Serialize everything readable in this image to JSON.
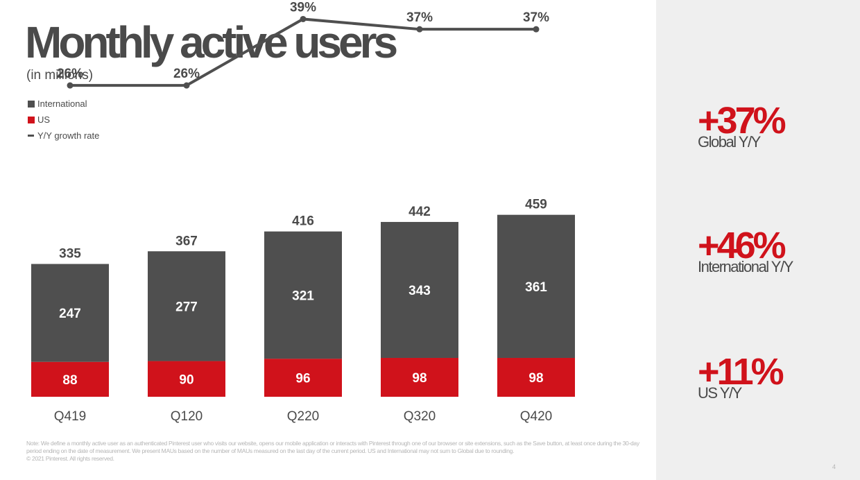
{
  "slide": {
    "title": "Monthly active users",
    "subtitle": "(in millions)",
    "page_number": "4",
    "footnote": "Note: We define a monthly active user as an authenticated Pinterest user who visits our website, opens our mobile application or interacts with Pinterest through one of our browser or site extensions, such as the Save button, at least once during the 30-day period ending on the date of measurement. We present MAUs based on the number of MAUs measured on the last day of the current period. US and International may not sum to Global due to rounding.",
    "copyright": "© 2021 Pinterest. All rights reserved."
  },
  "legend": {
    "international": "International",
    "us": "US",
    "growth": "Y/Y growth rate"
  },
  "stats": [
    {
      "value": "+37%",
      "label": "Global Y/Y"
    },
    {
      "value": "+46%",
      "label": "International Y/Y"
    },
    {
      "value": "+11%",
      "label": "US Y/Y"
    }
  ],
  "colors": {
    "international": "#4f4f4f",
    "us": "#d0121b",
    "growth_line": "#4f4f4f",
    "text": "#4a4a4a",
    "right_panel": "#efefef"
  },
  "chart_data": {
    "type": "bar",
    "stacked": true,
    "categories": [
      "Q419",
      "Q120",
      "Q220",
      "Q320",
      "Q420"
    ],
    "series": [
      {
        "name": "US",
        "values": [
          88,
          90,
          96,
          98,
          98
        ]
      },
      {
        "name": "International",
        "values": [
          247,
          277,
          321,
          343,
          361
        ]
      }
    ],
    "totals": [
      335,
      367,
      416,
      442,
      459
    ],
    "growth_rate": {
      "name": "Y/Y growth rate",
      "values": [
        26,
        26,
        39,
        37,
        37
      ],
      "labels": [
        "26%",
        "26%",
        "39%",
        "37%",
        "37%"
      ]
    },
    "grid": false,
    "legend_position": "top-left"
  }
}
